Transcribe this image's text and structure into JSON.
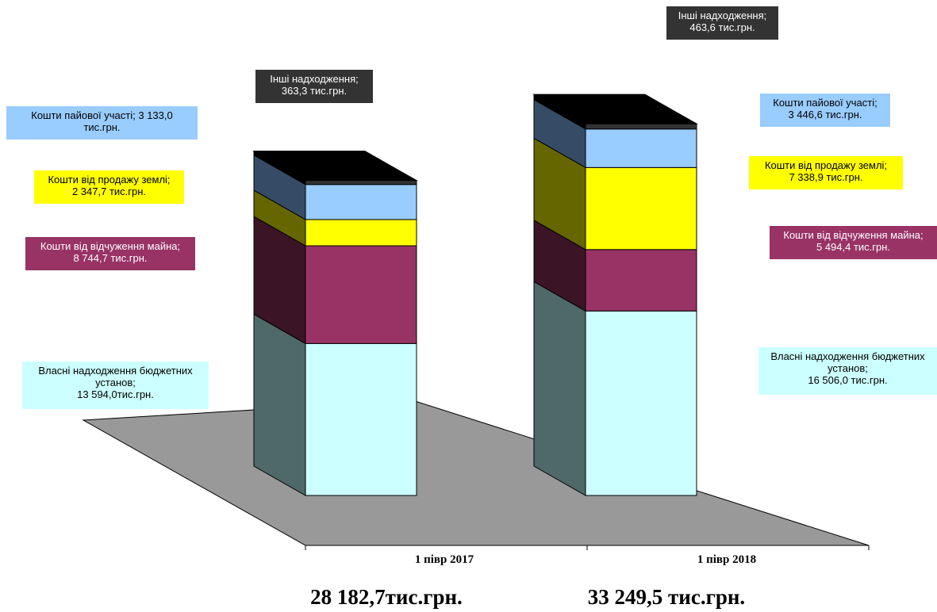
{
  "chart_data": {
    "type": "bar",
    "stacked": true,
    "three_d": true,
    "unit": "тис.грн.",
    "categories": [
      "1 пiвр 2017",
      "1 пiвр 2018"
    ],
    "totals": [
      "28 182,7тис.грн.",
      "33 249,5 тис.грн."
    ],
    "series": [
      {
        "values": [
          13594.0,
          16506.0
        ],
        "color": "#CCFFFF",
        "side_color": "#4F6868"
      },
      {
        "values": [
          8744.7,
          5494.4
        ],
        "color": "#993366",
        "side_color": "#3B1426"
      },
      {
        "values": [
          2347.7,
          7338.9
        ],
        "color": "#FFFF00",
        "side_color": "#666600"
      },
      {
        "values": [
          3133.0,
          3446.6
        ],
        "color": "#99CCFF",
        "side_color": "#364C66"
      },
      {
        "values": [
          363.3,
          463.6
        ],
        "color": "#333333",
        "side_color": "#000000"
      }
    ],
    "data_labels": [
      [
        {
          "lines": [
            "Власні надходження бюджетних",
            "установ;",
            "13 594,0тис.грн."
          ],
          "bg": "#CCFFFF",
          "fg": "#000000"
        },
        {
          "lines": [
            "Кошти від відчуження майна;",
            "8 744,7 тис.грн."
          ],
          "bg": "#993366",
          "fg": "#FFFFFF"
        },
        {
          "lines": [
            "Кошти від продажу землі;",
            "2 347,7 тис.грн."
          ],
          "bg": "#FFFF00",
          "fg": "#000000"
        },
        {
          "lines": [
            "Кошти пайової участі; 3 133,0",
            "тис.грн."
          ],
          "bg": "#99CCFF",
          "fg": "#000000"
        },
        {
          "lines": [
            "Інші надходження;",
            "363,3 тис.грн."
          ],
          "bg": "#333333",
          "fg": "#FFFFFF"
        }
      ],
      [
        {
          "lines": [
            "Власні надходження бюджетних",
            "установ;",
            "16 506,0 тис.грн."
          ],
          "bg": "#CCFFFF",
          "fg": "#000000"
        },
        {
          "lines": [
            "Кошти від відчуження майна;",
            "5 494,4 тис.грн."
          ],
          "bg": "#993366",
          "fg": "#FFFFFF"
        },
        {
          "lines": [
            "Кошти від продажу землі;",
            "7 338,9 тис.грн."
          ],
          "bg": "#FFFF00",
          "fg": "#000000"
        },
        {
          "lines": [
            "Кошти пайової участі;",
            "3 446,6 тис.грн."
          ],
          "bg": "#99CCFF",
          "fg": "#000000"
        },
        {
          "lines": [
            "Інші надходження;",
            "463,6 тис.грн."
          ],
          "bg": "#333333",
          "fg": "#FFFFFF"
        }
      ]
    ],
    "floor_color": "#999999",
    "grid": false,
    "legend": "none"
  }
}
